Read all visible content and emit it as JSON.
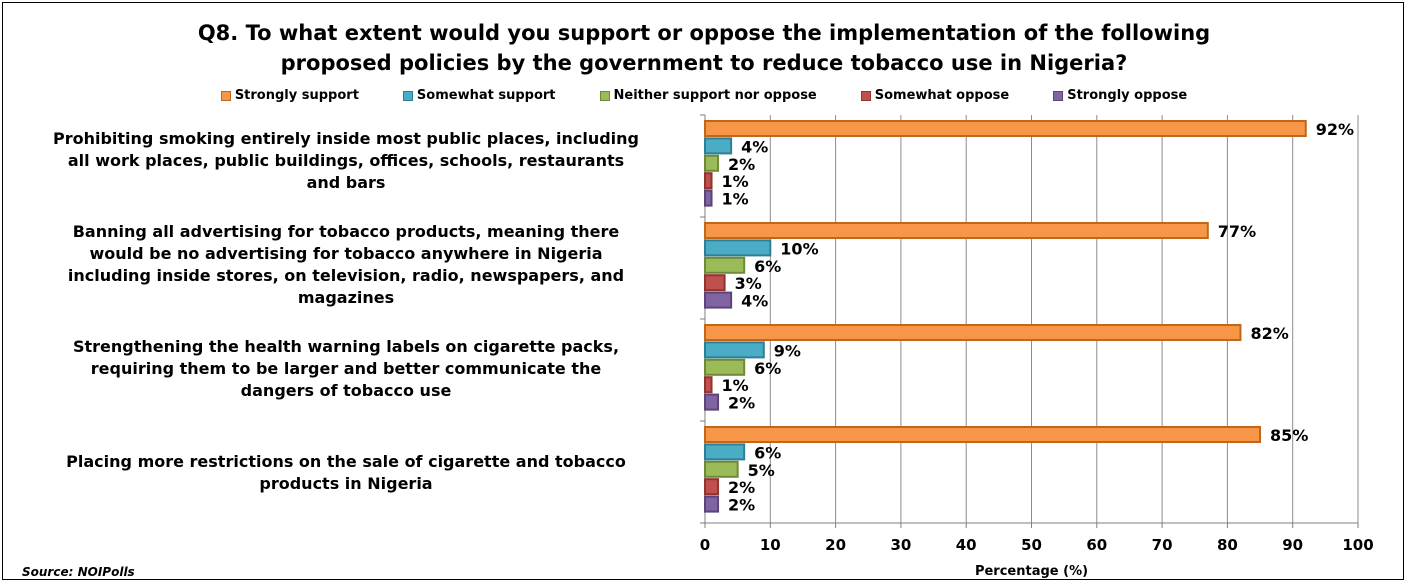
{
  "chart_data": {
    "type": "bar",
    "orientation": "horizontal",
    "title": "Q8. To what extent would you support or oppose the implementation of the following proposed policies by the government to reduce tobacco use in Nigeria?",
    "title_lines": [
      "Q8. To what extent would you support or oppose the implementation of the following",
      "proposed policies by the government to reduce tobacco use in Nigeria?"
    ],
    "categories": [
      [
        "Prohibiting smoking entirely inside most public places, including",
        "all work places, public buildings, offices, schools, restaurants",
        "and bars"
      ],
      [
        "Banning all advertising for tobacco products, meaning there",
        "would be no advertising for tobacco anywhere in Nigeria",
        "including inside stores, on television, radio, newspapers, and",
        "magazines"
      ],
      [
        "Strengthening the health warning labels on cigarette packs,",
        "requiring them to be larger and better communicate the",
        "dangers of tobacco use"
      ],
      [
        "Placing more restrictions on the sale of cigarette and tobacco",
        "products in Nigeria"
      ]
    ],
    "series": [
      {
        "name": "Strongly support",
        "color": "#F79646",
        "border": "#C0671E",
        "values": [
          92,
          77,
          82,
          85
        ]
      },
      {
        "name": "Somewhat support",
        "color": "#4BACC6",
        "border": "#2E7F95",
        "values": [
          4,
          10,
          9,
          6
        ]
      },
      {
        "name": "Neither support nor oppose",
        "color": "#9BBB59",
        "border": "#6E8A38",
        "values": [
          2,
          6,
          6,
          5
        ]
      },
      {
        "name": "Somewhat oppose",
        "color": "#C0504D",
        "border": "#8E3431",
        "values": [
          1,
          3,
          1,
          2
        ]
      },
      {
        "name": "Strongly oppose",
        "color": "#8064A2",
        "border": "#5B4577",
        "values": [
          1,
          4,
          2,
          2
        ]
      }
    ],
    "xlim": [
      0,
      100
    ],
    "xticks": [
      0,
      10,
      20,
      30,
      40,
      50,
      60,
      70,
      80,
      90,
      100
    ],
    "xlabel": "Percentage (%)",
    "value_suffix": "%",
    "grid": true,
    "legend_position": "top"
  },
  "source": "Source: NOIPolls"
}
